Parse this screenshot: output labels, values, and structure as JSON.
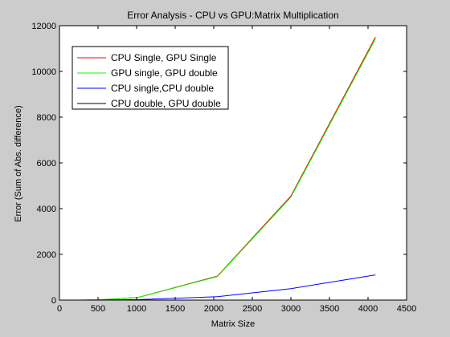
{
  "chart_data": {
    "type": "line",
    "title": "Error Analysis - CPU vs GPU:Matrix Multiplication",
    "xlabel": "Matrix Size",
    "ylabel": "Error (Sum of Abs. difference)",
    "xlim": [
      0,
      4500
    ],
    "ylim": [
      0,
      12000
    ],
    "xticks": [
      0,
      500,
      1000,
      1500,
      2000,
      2500,
      3000,
      3500,
      4000,
      4500
    ],
    "yticks": [
      0,
      2000,
      4000,
      6000,
      8000,
      10000,
      12000
    ],
    "grid": false,
    "legend_position": "top-left",
    "x": [
      16,
      32,
      64,
      128,
      256,
      512,
      1024,
      2048,
      3000,
      4096
    ],
    "series": [
      {
        "name": "CPU Single, GPU Single",
        "color": "#ff0000",
        "values": [
          0,
          0,
          0,
          0,
          2,
          15,
          120,
          1050,
          4550,
          11500
        ]
      },
      {
        "name": "GPU single, GPU double",
        "color": "#00ff00",
        "values": [
          0,
          0,
          0,
          0,
          2,
          14,
          115,
          1030,
          4500,
          11420
        ]
      },
      {
        "name": "CPU single,CPU double",
        "color": "#0000ff",
        "values": [
          0,
          0,
          0,
          0,
          0,
          2,
          20,
          150,
          500,
          1100
        ]
      },
      {
        "name": "CPU double, GPU double",
        "color": "#000000",
        "values": [
          0,
          0,
          0,
          0,
          0,
          0,
          0,
          0,
          0,
          0
        ]
      }
    ]
  }
}
